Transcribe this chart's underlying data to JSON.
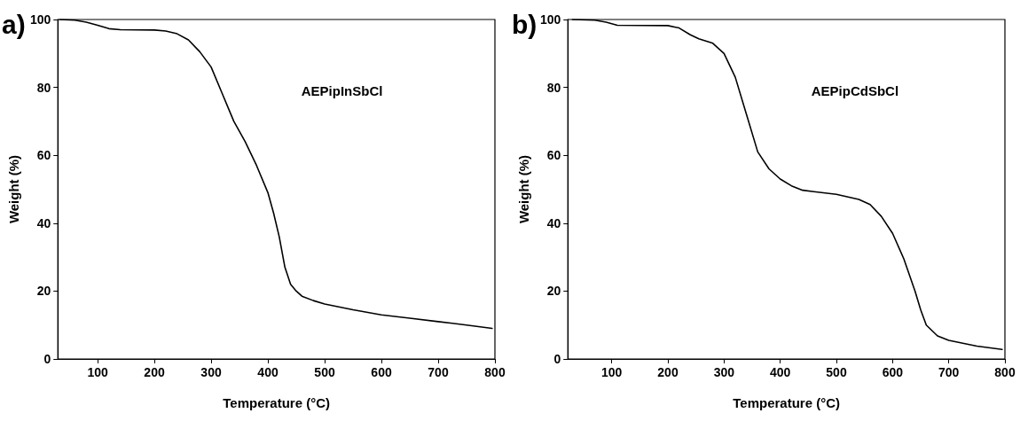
{
  "chart_data": [
    {
      "type": "line",
      "xlabel": "Temperature (°C)",
      "ylabel": "Weight (%)",
      "annotations": [
        "a)"
      ],
      "xlim": [
        30,
        800
      ],
      "xticks": [
        100,
        200,
        300,
        400,
        500,
        600,
        700,
        800
      ],
      "ylim": [
        0,
        100
      ],
      "yticks": [
        0,
        20,
        40,
        60,
        80,
        100
      ],
      "grid": false,
      "legend": false,
      "marker": "none",
      "line_style": "solid",
      "series": [
        {
          "name": "AEPipInSbCl",
          "color": "#000000",
          "x": [
            33,
            60,
            80,
            100,
            120,
            140,
            200,
            220,
            240,
            260,
            280,
            300,
            320,
            340,
            360,
            380,
            400,
            410,
            420,
            430,
            440,
            450,
            460,
            480,
            500,
            550,
            600,
            650,
            700,
            750,
            795
          ],
          "values": [
            100,
            99.8,
            99.2,
            98.3,
            97.3,
            97,
            96.9,
            96.6,
            95.8,
            94,
            90.5,
            86,
            78,
            70,
            64,
            57,
            49,
            43,
            36,
            27,
            22,
            20,
            18.5,
            17.2,
            16.2,
            14.5,
            13,
            12,
            11,
            10,
            9
          ]
        }
      ]
    },
    {
      "type": "line",
      "xlabel": "Temperature (°C)",
      "ylabel": "Weight (%)",
      "annotations": [
        "b)"
      ],
      "xlim": [
        22,
        800
      ],
      "xticks": [
        100,
        200,
        300,
        400,
        500,
        600,
        700,
        800
      ],
      "ylim": [
        0,
        100
      ],
      "yticks": [
        0,
        20,
        40,
        60,
        80,
        100
      ],
      "grid": false,
      "legend": false,
      "marker": "none",
      "line_style": "solid",
      "series": [
        {
          "name": "AEPipCdSbCl",
          "color": "#000000",
          "x": [
            30,
            70,
            90,
            110,
            200,
            220,
            240,
            255,
            280,
            300,
            320,
            340,
            360,
            380,
            400,
            420,
            440,
            460,
            500,
            540,
            560,
            580,
            600,
            620,
            640,
            650,
            660,
            680,
            700,
            750,
            795
          ],
          "values": [
            100,
            99.8,
            99.2,
            98.3,
            98.2,
            97.5,
            95.5,
            94.3,
            93,
            90,
            83,
            72,
            61,
            56,
            53,
            51,
            49.7,
            49.3,
            48.5,
            47,
            45.5,
            42,
            37,
            29.5,
            20,
            14.5,
            10,
            6.8,
            5.5,
            3.8,
            2.8
          ]
        }
      ]
    }
  ]
}
